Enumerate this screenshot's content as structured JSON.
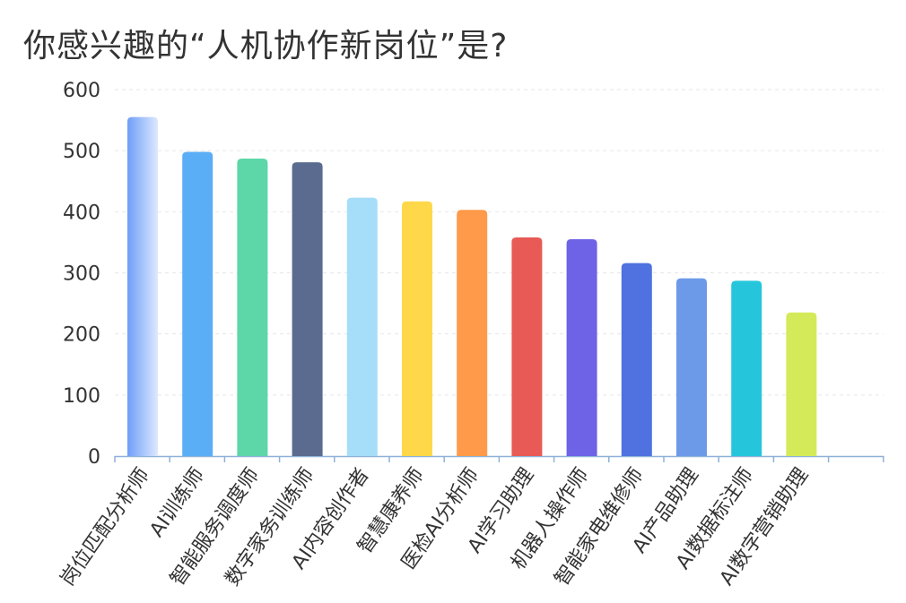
{
  "title": "你感兴趣的“人机协作新岗位”是?",
  "chart_data": {
    "type": "bar",
    "title": "你感兴趣的“人机协作新岗位”是?",
    "xlabel": "",
    "ylabel": "",
    "ylim": [
      0,
      600
    ],
    "yticks": [
      0,
      100,
      200,
      300,
      400,
      500,
      600
    ],
    "grid": true,
    "categories": [
      "岗位匹配分析师",
      "AI训练师",
      "智能服务调度师",
      "数字家务训练师",
      "AI内容创作者",
      "智慧康养师",
      "医检AI分析师",
      "AI学习助理",
      "机器人操作师",
      "智能家电维修师",
      "AI产品助理",
      "AI数据标注师",
      "AI数字营销助理"
    ],
    "values": [
      555,
      498,
      487,
      481,
      423,
      417,
      403,
      358,
      355,
      316,
      291,
      287,
      235
    ],
    "colors": [
      "#7aa7f7",
      "#5aaef6",
      "#5dd6a8",
      "#5a6b8f",
      "#a6ddf9",
      "#ffd84a",
      "#ff9a4a",
      "#e85a55",
      "#6e62e6",
      "#4f72e0",
      "#6c9ae8",
      "#25c6dc",
      "#d4ea58"
    ]
  }
}
